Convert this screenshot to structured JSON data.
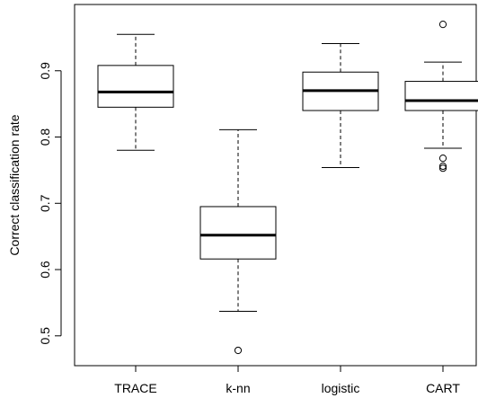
{
  "chart_data": {
    "type": "boxplot",
    "title": "",
    "xlabel": "",
    "ylabel": "Correct classification rate",
    "ylim": [
      0.455,
      1.0
    ],
    "yticks": [
      0.5,
      0.6,
      0.7,
      0.8,
      0.9
    ],
    "ytick_labels": [
      "0.5",
      "0.6",
      "0.7",
      "0.8",
      "0.9"
    ],
    "grid": false,
    "categories": [
      "TRACE",
      "k-nn",
      "logistic",
      "CART"
    ],
    "boxes": [
      {
        "label": "TRACE",
        "whisker_low": 0.78,
        "q1": 0.845,
        "median": 0.868,
        "q3": 0.908,
        "whisker_high": 0.955,
        "outliers": []
      },
      {
        "label": "k-nn",
        "whisker_low": 0.537,
        "q1": 0.616,
        "median": 0.652,
        "q3": 0.695,
        "whisker_high": 0.811,
        "outliers": [
          0.478
        ]
      },
      {
        "label": "logistic",
        "whisker_low": 0.754,
        "q1": 0.84,
        "median": 0.87,
        "q3": 0.898,
        "whisker_high": 0.941,
        "outliers": []
      },
      {
        "label": "CART",
        "whisker_low": 0.783,
        "q1": 0.84,
        "median": 0.855,
        "q3": 0.884,
        "whisker_high": 0.913,
        "outliers": [
          0.97,
          0.768,
          0.756,
          0.753
        ]
      }
    ]
  }
}
